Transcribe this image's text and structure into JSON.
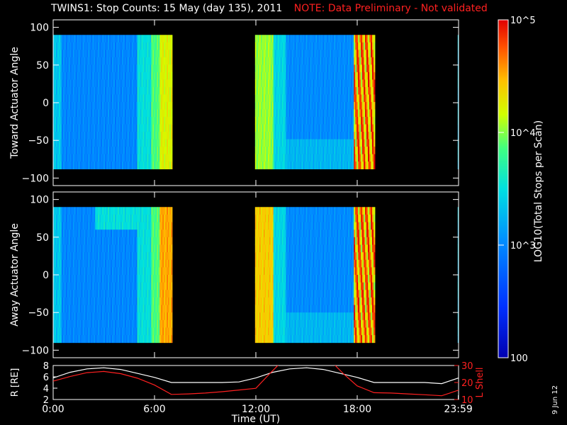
{
  "title": {
    "main": "TWINS1: Stop Counts: 15 May (day 135), 2011",
    "note": "NOTE: Data Preliminary - Not validated"
  },
  "stamp": "9 Jun 12",
  "chart_data": [
    {
      "type": "heatmap",
      "id": "toward",
      "ylabel": "Toward Actuator Angle",
      "ylim": [
        -110,
        110
      ],
      "yticks": [
        100,
        50,
        0,
        -50,
        -100
      ],
      "data_yrange": [
        -88,
        90
      ],
      "data_segments_hours": [
        [
          0.0,
          7.05
        ],
        [
          11.95,
          19.05
        ],
        [
          23.95,
          24.1
        ]
      ],
      "log_counts_range": [
        2.0,
        5.0
      ]
    },
    {
      "type": "heatmap",
      "id": "away",
      "ylabel": "Away Actuator Angle",
      "ylim": [
        -110,
        110
      ],
      "yticks": [
        100,
        50,
        0,
        -50,
        -100
      ],
      "data_yrange": [
        -90,
        90
      ],
      "data_segments_hours": [
        [
          0.0,
          7.05
        ],
        [
          11.95,
          19.05
        ],
        [
          23.95,
          24.1
        ]
      ],
      "log_counts_range": [
        2.0,
        5.0
      ]
    },
    {
      "type": "line",
      "id": "orbit",
      "xlabel": "Time (UT)",
      "xticks_hours": [
        0,
        6,
        12,
        18,
        23.983
      ],
      "xtick_labels": [
        "0:00",
        "6:00",
        "12:00",
        "18:00",
        "23:59"
      ],
      "ylabel_left": "R [RE]",
      "ylim_left": [
        2,
        8
      ],
      "yticks_left": [
        8,
        6,
        4,
        2
      ],
      "ylabel_right": "L Shell",
      "ylim_right": [
        10,
        30
      ],
      "yticks_right": [
        30,
        20,
        10
      ],
      "yticklabels_right_show": [
        "30",
        "20",
        "10"
      ],
      "series": [
        {
          "name": "R",
          "color": "#ffffff",
          "x": [
            0,
            1,
            2,
            3,
            4,
            5,
            6,
            7,
            8,
            9,
            10,
            11,
            12,
            13,
            14,
            15,
            16,
            17,
            18,
            19,
            20,
            21,
            22,
            23,
            24
          ],
          "y": [
            5.8,
            6.8,
            7.4,
            7.6,
            7.3,
            6.6,
            5.9,
            5.0,
            5.0,
            5.0,
            5.0,
            5.1,
            5.8,
            6.8,
            7.4,
            7.6,
            7.3,
            6.6,
            5.9,
            5.0,
            5.0,
            5.0,
            5.0,
            4.8,
            5.8
          ]
        },
        {
          "name": "L Shell",
          "color": "#ff2020",
          "x": [
            0,
            1,
            2,
            3,
            4,
            5,
            6,
            7,
            8,
            9,
            10,
            11,
            12,
            12.8,
            13.4,
            16.6,
            17.2,
            18,
            19,
            20,
            21,
            22,
            23,
            24
          ],
          "y": [
            20.8,
            23.5,
            25.8,
            26.5,
            25.2,
            22.5,
            18.5,
            13.0,
            13.3,
            13.8,
            14.6,
            15.6,
            16.6,
            25,
            31,
            31,
            25,
            18,
            14,
            13.8,
            13.3,
            12.8,
            12.2,
            15.5
          ]
        }
      ]
    },
    {
      "type": "heatmap",
      "id": "colorbar",
      "label": "LOG10(Total Stops per Scan)",
      "ticks": [
        {
          "value": 5,
          "label": "10^5"
        },
        {
          "value": 4,
          "label": "10^4"
        },
        {
          "value": 3,
          "label": "10^3"
        },
        {
          "value": 2,
          "label": "100"
        }
      ]
    }
  ]
}
